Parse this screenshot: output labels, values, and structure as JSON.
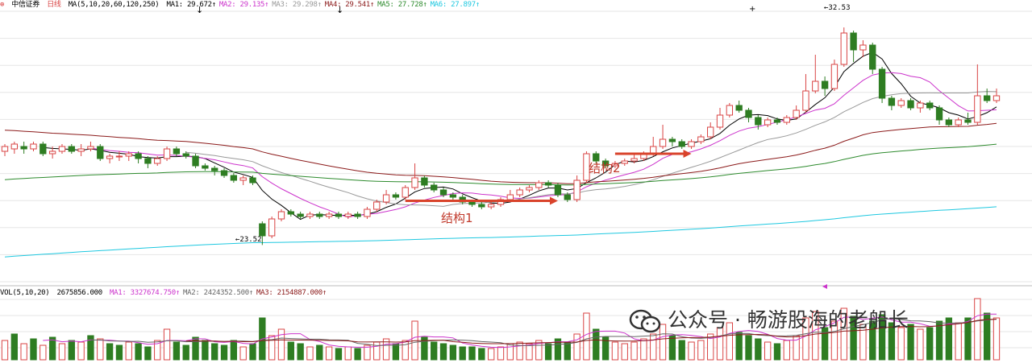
{
  "header": {
    "stock_name": "中信证券",
    "period": "日线",
    "ma_params": "MA(5,10,20,60,120,250)",
    "ma_values": [
      {
        "label": "MA1:",
        "value": "29.672",
        "color": "#000000"
      },
      {
        "label": "MA2:",
        "value": "29.135",
        "color": "#cc33cc"
      },
      {
        "label": "MA3:",
        "value": "29.298",
        "color": "#999999"
      },
      {
        "label": "MA4:",
        "value": "29.541",
        "color": "#8b1a1a"
      },
      {
        "label": "MA5:",
        "value": "27.728",
        "color": "#2e8b2e"
      },
      {
        "label": "MA6:",
        "value": "27.897",
        "color": "#1ec8e0"
      }
    ]
  },
  "volume_header": {
    "params": "VOL(5,10,20)",
    "vol_value": "2675856.000",
    "ma_values": [
      {
        "label": "MA1:",
        "value": "3327674.750",
        "color": "#cc33cc"
      },
      {
        "label": "MA2:",
        "value": "2424352.500",
        "color": "#666666"
      },
      {
        "label": "MA3:",
        "value": "2154887.000",
        "color": "#8b1a1a"
      }
    ]
  },
  "annotations": {
    "structure1": "结构1",
    "structure2": "结构2",
    "high_label": "32.53",
    "low_label": "23.52"
  },
  "watermark": {
    "text": "公众号 · 畅游股海的老船长"
  },
  "colors": {
    "up": "#d94444",
    "down": "#2e7d22",
    "arrow": "#d9432b",
    "grid": "#e6e6e6"
  },
  "chart_data": {
    "type": "candlestick",
    "title": "中信证券 日线",
    "price_range": [
      22.0,
      33.2
    ],
    "high": 32.53,
    "low": 23.52,
    "candles": [
      [
        27.4,
        27.6,
        27.2,
        27.7
      ],
      [
        27.5,
        27.7,
        27.3,
        27.8
      ],
      [
        27.6,
        27.5,
        27.3,
        27.8
      ],
      [
        27.5,
        27.7,
        27.4,
        27.8
      ],
      [
        27.7,
        27.3,
        27.2,
        27.8
      ],
      [
        27.3,
        27.4,
        27.1,
        27.6
      ],
      [
        27.4,
        27.6,
        27.3,
        27.7
      ],
      [
        27.6,
        27.4,
        27.3,
        27.7
      ],
      [
        27.4,
        27.5,
        27.2,
        27.7
      ],
      [
        27.5,
        27.6,
        27.4,
        27.8
      ],
      [
        27.6,
        27.1,
        27.0,
        27.7
      ],
      [
        27.1,
        27.2,
        26.9,
        27.3
      ],
      [
        27.2,
        27.2,
        27.0,
        27.4
      ],
      [
        27.2,
        27.3,
        27.0,
        27.4
      ],
      [
        27.3,
        27.1,
        26.9,
        27.4
      ],
      [
        27.1,
        26.9,
        26.7,
        27.2
      ],
      [
        26.9,
        27.1,
        26.8,
        27.2
      ],
      [
        27.1,
        27.5,
        27.0,
        27.6
      ],
      [
        27.5,
        27.3,
        27.2,
        27.6
      ],
      [
        27.3,
        27.2,
        27.1,
        27.4
      ],
      [
        27.2,
        26.8,
        26.7,
        27.3
      ],
      [
        26.8,
        26.7,
        26.6,
        26.9
      ],
      [
        26.7,
        26.6,
        26.4,
        26.8
      ],
      [
        26.6,
        26.4,
        26.3,
        26.7
      ],
      [
        26.4,
        26.2,
        26.1,
        26.5
      ],
      [
        26.2,
        26.3,
        26.0,
        26.4
      ],
      [
        26.3,
        26.1,
        26.0,
        26.4
      ],
      [
        24.4,
        23.9,
        23.52,
        24.5
      ],
      [
        23.9,
        24.6,
        23.8,
        24.7
      ],
      [
        24.6,
        24.9,
        24.5,
        25.0
      ],
      [
        24.9,
        24.8,
        24.7,
        25.0
      ],
      [
        24.8,
        24.7,
        24.6,
        24.9
      ],
      [
        24.7,
        24.8,
        24.6,
        24.9
      ],
      [
        24.8,
        24.7,
        24.6,
        24.9
      ],
      [
        24.7,
        24.8,
        24.6,
        24.9
      ],
      [
        24.8,
        24.7,
        24.6,
        24.9
      ],
      [
        24.7,
        24.8,
        24.6,
        24.9
      ],
      [
        24.8,
        24.7,
        24.6,
        24.9
      ],
      [
        24.7,
        25.0,
        24.6,
        25.1
      ],
      [
        25.0,
        25.3,
        24.9,
        25.4
      ],
      [
        25.3,
        25.6,
        25.2,
        25.8
      ],
      [
        25.6,
        25.5,
        25.4,
        25.7
      ],
      [
        25.5,
        25.9,
        25.4,
        26.0
      ],
      [
        25.9,
        26.3,
        25.8,
        26.9
      ],
      [
        26.3,
        26.0,
        25.9,
        26.4
      ],
      [
        26.0,
        25.8,
        25.7,
        26.1
      ],
      [
        25.8,
        25.6,
        25.5,
        25.9
      ],
      [
        25.6,
        25.5,
        25.4,
        25.7
      ],
      [
        25.5,
        25.3,
        25.2,
        25.6
      ],
      [
        25.3,
        25.2,
        25.1,
        25.4
      ],
      [
        25.2,
        25.1,
        25.0,
        25.3
      ],
      [
        25.1,
        25.2,
        25.0,
        25.3
      ],
      [
        25.2,
        25.4,
        25.1,
        25.5
      ],
      [
        25.4,
        25.6,
        25.3,
        25.8
      ],
      [
        25.6,
        25.8,
        25.5,
        25.9
      ],
      [
        25.8,
        25.9,
        25.7,
        26.0
      ],
      [
        25.9,
        26.1,
        25.8,
        26.2
      ],
      [
        26.1,
        26.0,
        25.9,
        26.2
      ],
      [
        26.0,
        25.6,
        25.5,
        26.1
      ],
      [
        25.6,
        25.4,
        25.3,
        25.7
      ],
      [
        25.4,
        26.2,
        25.3,
        26.4
      ],
      [
        26.2,
        27.3,
        26.1,
        27.4
      ],
      [
        27.3,
        27.0,
        26.9,
        27.4
      ],
      [
        27.0,
        26.8,
        26.7,
        27.1
      ],
      [
        26.8,
        26.9,
        26.7,
        27.0
      ],
      [
        26.9,
        27.0,
        26.8,
        27.1
      ],
      [
        27.0,
        27.1,
        26.9,
        27.3
      ],
      [
        27.1,
        27.3,
        27.0,
        27.4
      ],
      [
        27.3,
        27.6,
        27.2,
        28.0
      ],
      [
        27.6,
        27.9,
        27.5,
        28.5
      ],
      [
        27.9,
        27.8,
        27.6,
        28.0
      ],
      [
        27.8,
        27.6,
        27.5,
        27.9
      ],
      [
        27.6,
        27.8,
        27.5,
        27.9
      ],
      [
        27.8,
        28.0,
        27.7,
        28.1
      ],
      [
        28.0,
        28.4,
        27.9,
        28.6
      ],
      [
        28.4,
        28.9,
        28.3,
        29.2
      ],
      [
        28.9,
        29.3,
        28.8,
        29.4
      ],
      [
        29.3,
        29.1,
        29.0,
        29.5
      ],
      [
        29.1,
        28.8,
        28.6,
        29.2
      ],
      [
        28.8,
        28.5,
        28.3,
        28.9
      ],
      [
        28.5,
        28.7,
        28.4,
        28.8
      ],
      [
        28.7,
        28.6,
        28.5,
        28.8
      ],
      [
        28.6,
        28.8,
        28.5,
        28.9
      ],
      [
        28.8,
        29.1,
        28.7,
        29.3
      ],
      [
        29.1,
        29.9,
        29.0,
        30.6
      ],
      [
        29.9,
        30.3,
        29.8,
        31.4
      ],
      [
        30.3,
        30.0,
        29.7,
        30.5
      ],
      [
        30.0,
        31.0,
        29.9,
        31.2
      ],
      [
        31.0,
        32.3,
        30.9,
        32.53
      ],
      [
        32.3,
        31.6,
        31.1,
        32.4
      ],
      [
        31.6,
        31.8,
        31.3,
        32.0
      ],
      [
        31.8,
        30.8,
        30.6,
        31.9
      ],
      [
        30.8,
        29.6,
        29.4,
        30.9
      ],
      [
        29.6,
        29.3,
        29.1,
        29.7
      ],
      [
        29.3,
        29.5,
        29.2,
        29.6
      ],
      [
        29.5,
        29.2,
        29.1,
        29.6
      ],
      [
        29.2,
        29.4,
        29.0,
        29.5
      ],
      [
        29.4,
        29.2,
        29.1,
        29.5
      ],
      [
        29.2,
        28.7,
        28.5,
        29.3
      ],
      [
        28.7,
        28.5,
        28.4,
        28.8
      ],
      [
        28.5,
        28.7,
        28.4,
        28.8
      ],
      [
        28.7,
        28.6,
        28.5,
        29.0
      ],
      [
        28.6,
        29.7,
        28.5,
        31.0
      ],
      [
        29.7,
        29.5,
        29.4,
        30.0
      ],
      [
        29.5,
        29.7,
        29.4,
        30.0
      ]
    ],
    "volume": {
      "params": "VOL(5,10,20)",
      "bars": [
        [
          1.2,
          0
        ],
        [
          1.6,
          1
        ],
        [
          1.0,
          0
        ],
        [
          1.3,
          1
        ],
        [
          0.9,
          0
        ],
        [
          1.4,
          1
        ],
        [
          1.0,
          0
        ],
        [
          1.2,
          1
        ],
        [
          1.1,
          0
        ],
        [
          1.5,
          1
        ],
        [
          1.3,
          0
        ],
        [
          1.0,
          1
        ],
        [
          0.9,
          1
        ],
        [
          1.1,
          0
        ],
        [
          1.0,
          1
        ],
        [
          0.8,
          1
        ],
        [
          1.2,
          0
        ],
        [
          1.9,
          0
        ],
        [
          1.1,
          1
        ],
        [
          0.9,
          1
        ],
        [
          1.4,
          1
        ],
        [
          1.2,
          1
        ],
        [
          1.0,
          1
        ],
        [
          0.9,
          1
        ],
        [
          1.2,
          1
        ],
        [
          0.8,
          0
        ],
        [
          1.0,
          1
        ],
        [
          2.6,
          1
        ],
        [
          1.5,
          0
        ],
        [
          1.9,
          0
        ],
        [
          1.1,
          1
        ],
        [
          1.0,
          1
        ],
        [
          0.8,
          0
        ],
        [
          0.9,
          1
        ],
        [
          0.8,
          0
        ],
        [
          0.7,
          1
        ],
        [
          0.8,
          0
        ],
        [
          0.7,
          1
        ],
        [
          0.9,
          0
        ],
        [
          1.1,
          0
        ],
        [
          1.3,
          0
        ],
        [
          1.0,
          1
        ],
        [
          1.2,
          0
        ],
        [
          2.4,
          0
        ],
        [
          1.4,
          1
        ],
        [
          1.1,
          1
        ],
        [
          1.0,
          1
        ],
        [
          0.9,
          1
        ],
        [
          0.8,
          1
        ],
        [
          0.8,
          1
        ],
        [
          0.7,
          1
        ],
        [
          0.7,
          0
        ],
        [
          0.8,
          0
        ],
        [
          1.0,
          0
        ],
        [
          1.1,
          0
        ],
        [
          1.0,
          0
        ],
        [
          1.2,
          0
        ],
        [
          1.0,
          1
        ],
        [
          1.3,
          1
        ],
        [
          1.1,
          1
        ],
        [
          1.6,
          0
        ],
        [
          2.9,
          0
        ],
        [
          1.9,
          1
        ],
        [
          1.4,
          1
        ],
        [
          1.1,
          0
        ],
        [
          1.0,
          0
        ],
        [
          1.1,
          0
        ],
        [
          1.3,
          0
        ],
        [
          1.6,
          0
        ],
        [
          2.2,
          0
        ],
        [
          1.5,
          1
        ],
        [
          1.2,
          1
        ],
        [
          1.1,
          0
        ],
        [
          1.2,
          0
        ],
        [
          1.6,
          0
        ],
        [
          2.0,
          0
        ],
        [
          2.3,
          0
        ],
        [
          1.7,
          1
        ],
        [
          1.5,
          1
        ],
        [
          1.3,
          1
        ],
        [
          1.1,
          0
        ],
        [
          1.0,
          1
        ],
        [
          1.2,
          0
        ],
        [
          1.5,
          0
        ],
        [
          2.6,
          0
        ],
        [
          3.0,
          0
        ],
        [
          2.0,
          1
        ],
        [
          2.4,
          0
        ],
        [
          3.2,
          0
        ],
        [
          2.7,
          1
        ],
        [
          2.2,
          0
        ],
        [
          2.4,
          1
        ],
        [
          2.8,
          1
        ],
        [
          2.3,
          1
        ],
        [
          2.0,
          0
        ],
        [
          2.2,
          1
        ],
        [
          1.9,
          0
        ],
        [
          2.0,
          1
        ],
        [
          2.4,
          1
        ],
        [
          2.6,
          1
        ],
        [
          2.3,
          0
        ],
        [
          2.6,
          1
        ],
        [
          3.8,
          0
        ],
        [
          2.9,
          1
        ],
        [
          2.6,
          0
        ]
      ]
    },
    "annotations": [
      {
        "text": "结构1"
      },
      {
        "text": "结构2"
      },
      {
        "text": "32.53"
      },
      {
        "text": "23.52"
      }
    ],
    "grid": true
  }
}
